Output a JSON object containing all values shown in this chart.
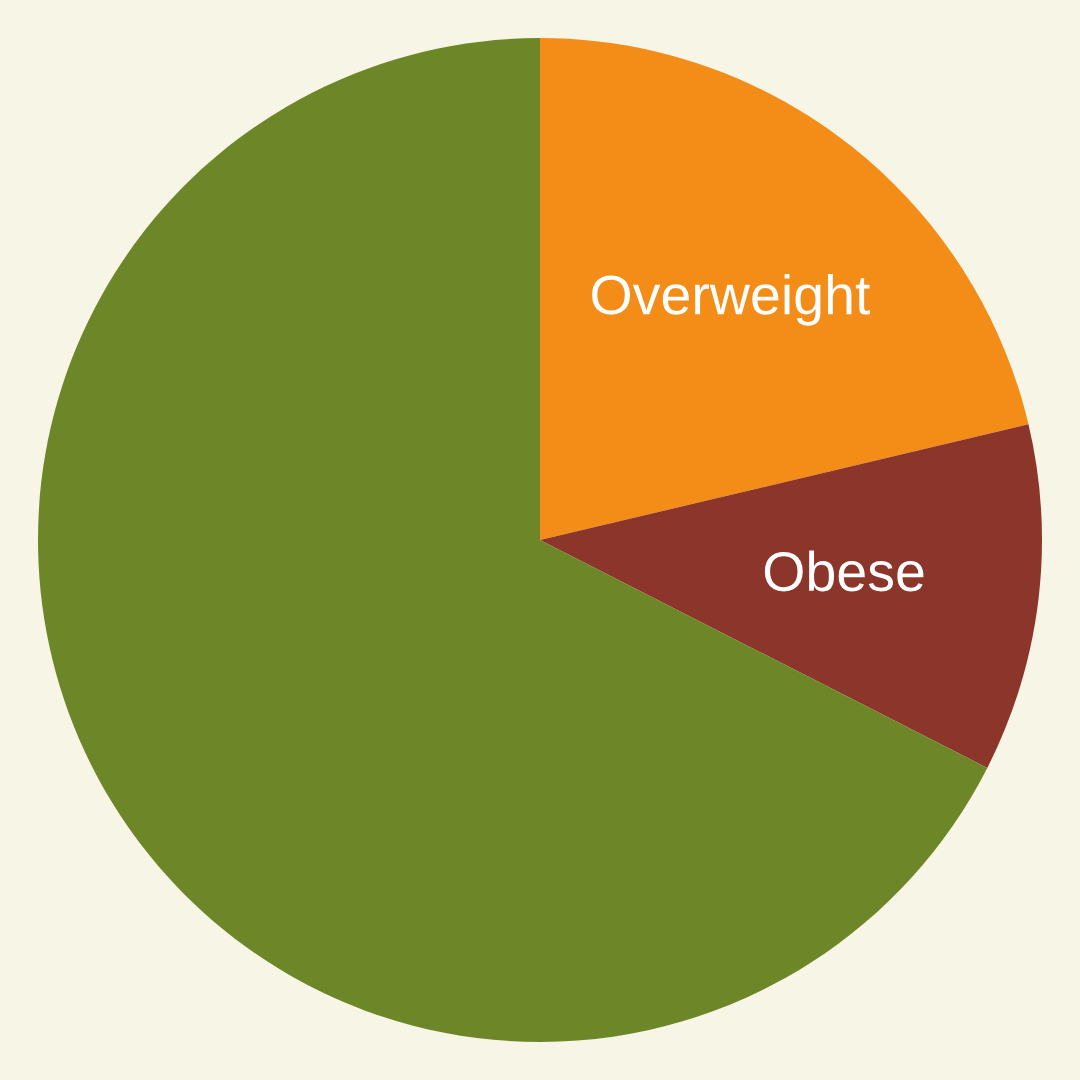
{
  "chart_data": {
    "type": "pie",
    "categories": [
      "Overweight",
      "Obese",
      null
    ],
    "values": [
      21.3,
      11.2,
      67.5
    ],
    "colors": [
      "#f48c18",
      "#8c352b",
      "#6d8627"
    ]
  }
}
